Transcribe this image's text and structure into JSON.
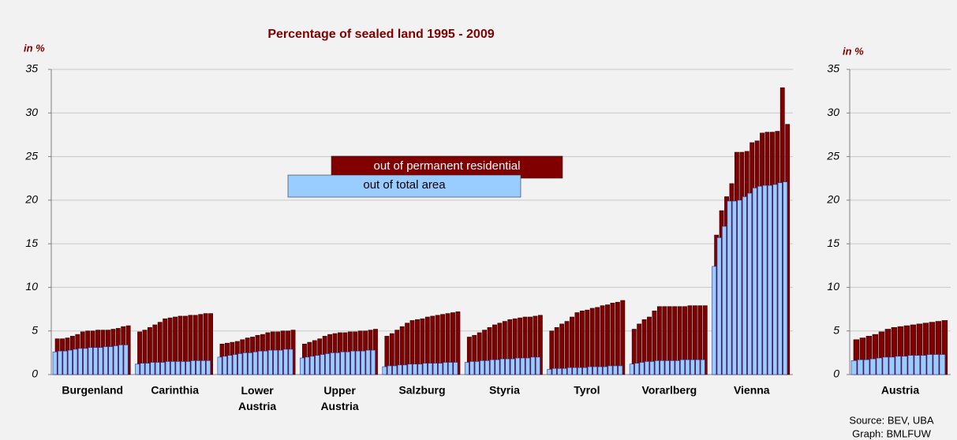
{
  "chart_data": [
    {
      "type": "bar",
      "title": "Percentage of sealed land 1995 - 2009",
      "y_unit": "in %",
      "categories": [
        "Burgenland",
        "Carinthia",
        "Lower Austria",
        "Upper Austria",
        "Salzburg",
        "Styria",
        "Tyrol",
        "Vorarlberg",
        "Vienna"
      ],
      "ylim": [
        0,
        35
      ],
      "yticks": [
        0,
        5,
        10,
        15,
        20,
        25,
        30,
        35
      ],
      "grid": true,
      "legend": "center",
      "series": [
        {
          "name": "out of total area",
          "color": "#99ccff",
          "values": [
            [
              2.6,
              2.7,
              2.7,
              2.8,
              2.9,
              3.0,
              3.0,
              3.1,
              3.1,
              3.1,
              3.2,
              3.2,
              3.3,
              3.4,
              3.4
            ],
            [
              1.2,
              1.3,
              1.3,
              1.4,
              1.4,
              1.4,
              1.5,
              1.5,
              1.5,
              1.5,
              1.5,
              1.6,
              1.6,
              1.6,
              1.6
            ],
            [
              2.0,
              2.1,
              2.2,
              2.3,
              2.4,
              2.5,
              2.5,
              2.6,
              2.7,
              2.7,
              2.8,
              2.8,
              2.8,
              2.9,
              2.9
            ],
            [
              1.9,
              2.0,
              2.1,
              2.2,
              2.3,
              2.4,
              2.5,
              2.5,
              2.6,
              2.6,
              2.7,
              2.7,
              2.7,
              2.8,
              2.8
            ],
            [
              0.9,
              1.0,
              1.0,
              1.1,
              1.1,
              1.2,
              1.2,
              1.2,
              1.3,
              1.3,
              1.3,
              1.3,
              1.4,
              1.4,
              1.4
            ],
            [
              1.4,
              1.5,
              1.5,
              1.6,
              1.6,
              1.7,
              1.7,
              1.8,
              1.8,
              1.8,
              1.9,
              1.9,
              1.9,
              2.0,
              2.0
            ],
            [
              0.6,
              0.7,
              0.7,
              0.7,
              0.8,
              0.8,
              0.8,
              0.8,
              0.9,
              0.9,
              0.9,
              0.9,
              1.0,
              1.0,
              1.0
            ],
            [
              1.2,
              1.3,
              1.4,
              1.5,
              1.5,
              1.6,
              1.6,
              1.6,
              1.6,
              1.6,
              1.7,
              1.7,
              1.7,
              1.7,
              1.7
            ],
            [
              12.4,
              15.7,
              17.0,
              19.9,
              19.9,
              20.0,
              20.4,
              20.8,
              21.4,
              21.6,
              21.7,
              21.7,
              21.8,
              22.0,
              22.1
            ]
          ]
        },
        {
          "name": "out of permanent residential",
          "color": "#800000",
          "values": [
            [
              4.1,
              4.1,
              4.2,
              4.4,
              4.6,
              4.9,
              5.0,
              5.0,
              5.1,
              5.1,
              5.1,
              5.2,
              5.3,
              5.5,
              5.6
            ],
            [
              4.9,
              5.1,
              5.4,
              5.7,
              6.0,
              6.4,
              6.5,
              6.6,
              6.7,
              6.7,
              6.8,
              6.8,
              6.9,
              7.0,
              7.0
            ],
            [
              3.5,
              3.6,
              3.7,
              3.8,
              4.0,
              4.2,
              4.3,
              4.5,
              4.6,
              4.8,
              4.9,
              4.9,
              5.0,
              5.0,
              5.1
            ],
            [
              3.5,
              3.7,
              3.9,
              4.1,
              4.4,
              4.6,
              4.7,
              4.8,
              4.8,
              4.9,
              4.9,
              5.0,
              5.0,
              5.1,
              5.2
            ],
            [
              4.4,
              4.7,
              5.1,
              5.5,
              5.9,
              6.2,
              6.3,
              6.4,
              6.6,
              6.7,
              6.8,
              6.9,
              7.0,
              7.1,
              7.2
            ],
            [
              4.3,
              4.5,
              4.8,
              5.1,
              5.4,
              5.7,
              5.9,
              6.1,
              6.3,
              6.4,
              6.5,
              6.6,
              6.6,
              6.7,
              6.8
            ],
            [
              5.0,
              5.4,
              5.8,
              6.1,
              6.6,
              7.1,
              7.3,
              7.4,
              7.6,
              7.7,
              7.9,
              8.0,
              8.2,
              8.3,
              8.5
            ],
            [
              5.2,
              5.8,
              6.3,
              6.6,
              7.3,
              7.8,
              7.8,
              7.8,
              7.8,
              7.8,
              7.8,
              7.9,
              7.9,
              7.9,
              7.9
            ],
            [
              16.0,
              18.8,
              20.4,
              21.9,
              25.5,
              25.5,
              25.6,
              26.6,
              26.8,
              27.7,
              27.8,
              27.8,
              27.9,
              32.9,
              28.7
            ]
          ]
        }
      ]
    },
    {
      "type": "bar",
      "y_unit": "in %",
      "categories": [
        "Austria"
      ],
      "ylim": [
        0,
        35
      ],
      "yticks": [
        0,
        5,
        10,
        15,
        20,
        25,
        30,
        35
      ],
      "grid": true,
      "series": [
        {
          "color": "#99ccff",
          "values": [
            [
              1.6,
              1.7,
              1.7,
              1.8,
              1.9,
              2.0,
              2.0,
              2.1,
              2.1,
              2.2,
              2.2,
              2.2,
              2.3,
              2.3,
              2.3
            ]
          ]
        },
        {
          "color": "#800000",
          "values": [
            [
              4.0,
              4.2,
              4.4,
              4.6,
              4.9,
              5.2,
              5.4,
              5.5,
              5.6,
              5.7,
              5.8,
              5.9,
              6.0,
              6.1,
              6.2
            ]
          ]
        }
      ]
    }
  ],
  "source": "Source: BEV, UBA",
  "graph": "Graph: BMLFUW"
}
